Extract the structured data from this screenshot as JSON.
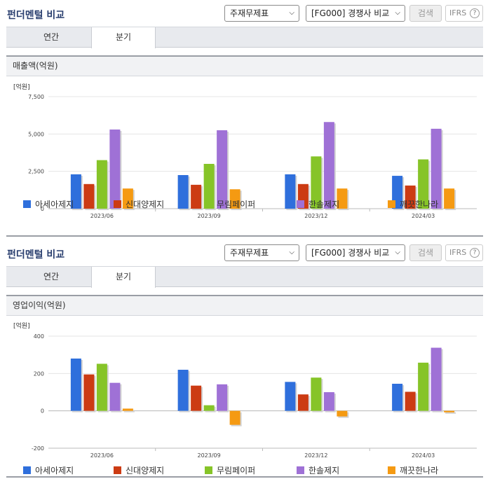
{
  "panels": [
    {
      "title": "펀더멘털 비교",
      "select_report": "주재무제표",
      "select_peer": "[FG000] 경쟁사 비교",
      "search_label": "검색",
      "ifrs_label": "IFRS",
      "help_label": "?",
      "tabs": [
        {
          "label": "연간",
          "active": false
        },
        {
          "label": "분기",
          "active": true
        }
      ],
      "section_label": "매출액(억원)"
    },
    {
      "title": "펀더멘털 비교",
      "select_report": "주재무제표",
      "select_peer": "[FG000] 경쟁사 비교",
      "search_label": "검색",
      "ifrs_label": "IFRS",
      "help_label": "?",
      "tabs": [
        {
          "label": "연간",
          "active": false
        },
        {
          "label": "분기",
          "active": true
        }
      ],
      "section_label": "영업이익(억원)"
    }
  ],
  "colors": {
    "아세아제지": "#2f6fdc",
    "신대양제지": "#cc3b13",
    "무림페이퍼": "#86c428",
    "한솔제지": "#9f71d6",
    "깨끗한나라": "#f59a12"
  },
  "chart_data": [
    {
      "type": "bar",
      "unit_label": "[억원]",
      "categories": [
        "2023/06",
        "2023/09",
        "2023/12",
        "2024/03"
      ],
      "ylim": [
        0,
        7500
      ],
      "yticks": [
        0,
        2500,
        5000,
        7500
      ],
      "ytick_labels": [
        "0",
        "2,500",
        "5,000",
        "7,500"
      ],
      "grid": true,
      "legend_position": "bottom",
      "series": [
        {
          "name": "아세아제지",
          "values": [
            2300,
            2250,
            2300,
            2200
          ]
        },
        {
          "name": "신대양제지",
          "values": [
            1650,
            1600,
            1650,
            1550
          ]
        },
        {
          "name": "무림페이퍼",
          "values": [
            3250,
            3000,
            3500,
            3300
          ]
        },
        {
          "name": "한솔제지",
          "values": [
            5300,
            5250,
            5800,
            5350
          ]
        },
        {
          "name": "깨끗한나라",
          "values": [
            1350,
            1300,
            1350,
            1350
          ]
        }
      ]
    },
    {
      "type": "bar",
      "unit_label": "[억원]",
      "categories": [
        "2023/06",
        "2023/09",
        "2023/12",
        "2024/03"
      ],
      "ylim": [
        -200,
        400
      ],
      "yticks": [
        -200,
        0,
        200,
        400
      ],
      "ytick_labels": [
        "-200",
        "0",
        "200",
        "400"
      ],
      "grid": true,
      "legend_position": "bottom",
      "series": [
        {
          "name": "아세아제지",
          "values": [
            280,
            220,
            155,
            145
          ]
        },
        {
          "name": "신대양제지",
          "values": [
            195,
            135,
            88,
            102
          ]
        },
        {
          "name": "무림페이퍼",
          "values": [
            252,
            30,
            178,
            258
          ]
        },
        {
          "name": "한솔제지",
          "values": [
            150,
            142,
            100,
            338
          ]
        },
        {
          "name": "깨끗한나라",
          "values": [
            12,
            -75,
            -30,
            -8
          ]
        }
      ]
    }
  ]
}
